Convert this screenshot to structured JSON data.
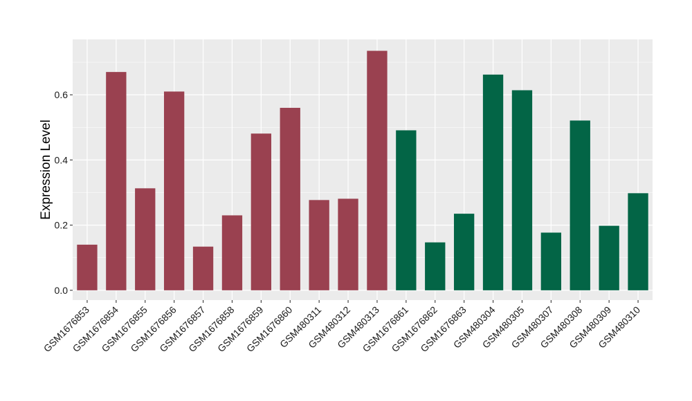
{
  "chart_data": {
    "type": "bar",
    "title": "",
    "xlabel": "",
    "ylabel": "Expression Level",
    "ylim": [
      -0.03,
      0.77
    ],
    "yticks": [
      0.0,
      0.2,
      0.4,
      0.6
    ],
    "ytick_labels": [
      "0.0",
      "0.2",
      "0.4",
      "0.6"
    ],
    "grid": true,
    "background": "#EBEBEB",
    "grid_color": "#FFFFFF",
    "categories": [
      "GSM1676853",
      "GSM1676854",
      "GSM1676855",
      "GSM1676856",
      "GSM1676857",
      "GSM1676858",
      "GSM1676859",
      "GSM1676860",
      "GSM480311",
      "GSM480312",
      "GSM480313",
      "GSM1676861",
      "GSM1676862",
      "GSM1676863",
      "GSM480304",
      "GSM480305",
      "GSM480307",
      "GSM480308",
      "GSM480309",
      "GSM480310"
    ],
    "values": [
      0.14,
      0.67,
      0.313,
      0.61,
      0.134,
      0.23,
      0.481,
      0.56,
      0.277,
      0.281,
      0.735,
      0.491,
      0.147,
      0.235,
      0.662,
      0.614,
      0.177,
      0.521,
      0.198,
      0.298
    ],
    "bar_colors": [
      "#9A4150",
      "#9A4150",
      "#9A4150",
      "#9A4150",
      "#9A4150",
      "#9A4150",
      "#9A4150",
      "#9A4150",
      "#9A4150",
      "#9A4150",
      "#9A4150",
      "#036546",
      "#036546",
      "#036546",
      "#036546",
      "#036546",
      "#036546",
      "#036546",
      "#036546",
      "#036546"
    ]
  }
}
